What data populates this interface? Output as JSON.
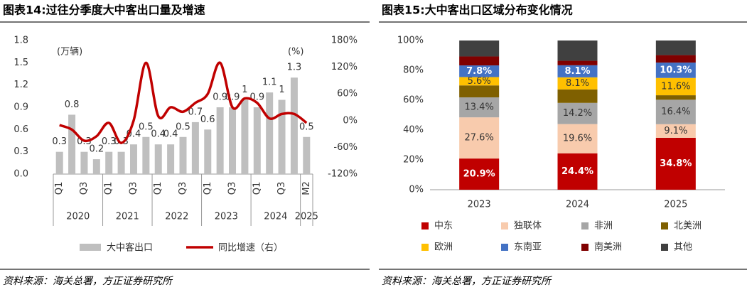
{
  "chart_data": [
    {
      "type": "bar",
      "title": "图表14:过往分季度大中客出口量及增速",
      "y_unit": "(万辆)",
      "y2_unit": "(%)",
      "categories": [
        "Q1",
        null,
        "Q3",
        null,
        "Q1",
        null,
        "Q3",
        null,
        "Q1",
        null,
        "Q3",
        null,
        "Q1",
        null,
        "Q3",
        null,
        "Q1",
        null,
        "Q3",
        null,
        "M2"
      ],
      "x_groups": [
        "2020",
        "2021",
        "2022",
        "2023",
        "2024",
        "2025"
      ],
      "series": [
        {
          "name": "大中客出口",
          "type": "bar",
          "color": "#bfbfbf",
          "values": [
            0.3,
            0.8,
            0.3,
            0.2,
            0.3,
            0.3,
            0.4,
            0.5,
            0.4,
            0.4,
            0.5,
            0.7,
            0.6,
            0.9,
            0.9,
            1.0,
            0.9,
            1.1,
            1.0,
            1.3,
            0.5
          ]
        },
        {
          "name": "同比增速（右）",
          "type": "line",
          "axis": "y2",
          "color": "#c00000",
          "values": [
            -10,
            -20,
            -45,
            -35,
            -5,
            -50,
            0,
            130,
            10,
            30,
            20,
            40,
            60,
            130,
            30,
            50,
            40,
            5,
            15,
            15,
            -5
          ]
        }
      ],
      "ylim": [
        0,
        1.8
      ],
      "yticks": [
        {
          "value": 0,
          "label": "0.0"
        },
        0.3,
        0.6,
        0.9,
        1.2,
        1.5,
        1.8
      ],
      "y2lim": [
        -120,
        180
      ],
      "y2ticks": [
        {
          "value": -120,
          "label": "-120%"
        },
        {
          "value": -60,
          "label": "-60%"
        },
        {
          "value": 0,
          "label": "0%"
        },
        {
          "value": 60,
          "label": "60%"
        },
        {
          "value": 120,
          "label": "120%"
        },
        {
          "value": 180,
          "label": "180%"
        }
      ],
      "source": "资料来源：海关总署，方正证券研究所"
    },
    {
      "type": "stacked_bar",
      "title": "图表15:大中客出口区域分布变化情况",
      "categories": [
        "2023",
        "2024",
        "2025"
      ],
      "series": [
        {
          "name": "中东",
          "color": "#c00000",
          "values": [
            20.9,
            24.4,
            34.8
          ],
          "value_labels": [
            "20.9%",
            "24.4%",
            "34.8%"
          ]
        },
        {
          "name": "独联体",
          "color": "#f8cbad",
          "values": [
            27.6,
            19.6,
            9.1
          ],
          "value_labels": [
            "27.6%",
            "19.6%",
            "9.1%"
          ]
        },
        {
          "name": "非洲",
          "color": "#a6a6a6",
          "values": [
            13.4,
            14.2,
            16.4
          ],
          "value_labels": [
            "13.4%",
            "14.2%",
            "16.4%"
          ]
        },
        {
          "name": "北美洲",
          "color": "#7f6000",
          "values": [
            8,
            9,
            3
          ],
          "value_labels": [
            null,
            null,
            null
          ]
        },
        {
          "name": "欧洲",
          "color": "#ffc000",
          "values": [
            5.6,
            8.1,
            11.6
          ],
          "value_labels": [
            "5.6%",
            "8.1%",
            "11.6%"
          ]
        },
        {
          "name": "东南亚",
          "color": "#4472c4",
          "values": [
            7.8,
            8.1,
            10.3
          ],
          "value_labels": [
            "7.8%",
            "8.1%",
            "10.3%"
          ]
        },
        {
          "name": "南美洲",
          "color": "#800000",
          "values": [
            6,
            3,
            5
          ],
          "value_labels": [
            null,
            null,
            null
          ]
        },
        {
          "name": "其他",
          "color": "#404040",
          "values": [
            10.7,
            13.6,
            9.8
          ],
          "value_labels": [
            null,
            null,
            null
          ]
        }
      ],
      "ylim": [
        0,
        100
      ],
      "yticks": [
        {
          "value": 0,
          "label": "0%"
        },
        {
          "value": 20,
          "label": "20%"
        },
        {
          "value": 40,
          "label": "40%"
        },
        {
          "value": 60,
          "label": "60%"
        },
        {
          "value": 80,
          "label": "80%"
        },
        {
          "value": 100,
          "label": "100%"
        }
      ],
      "source": "资料来源：海关总署，方正证券研究所"
    }
  ]
}
